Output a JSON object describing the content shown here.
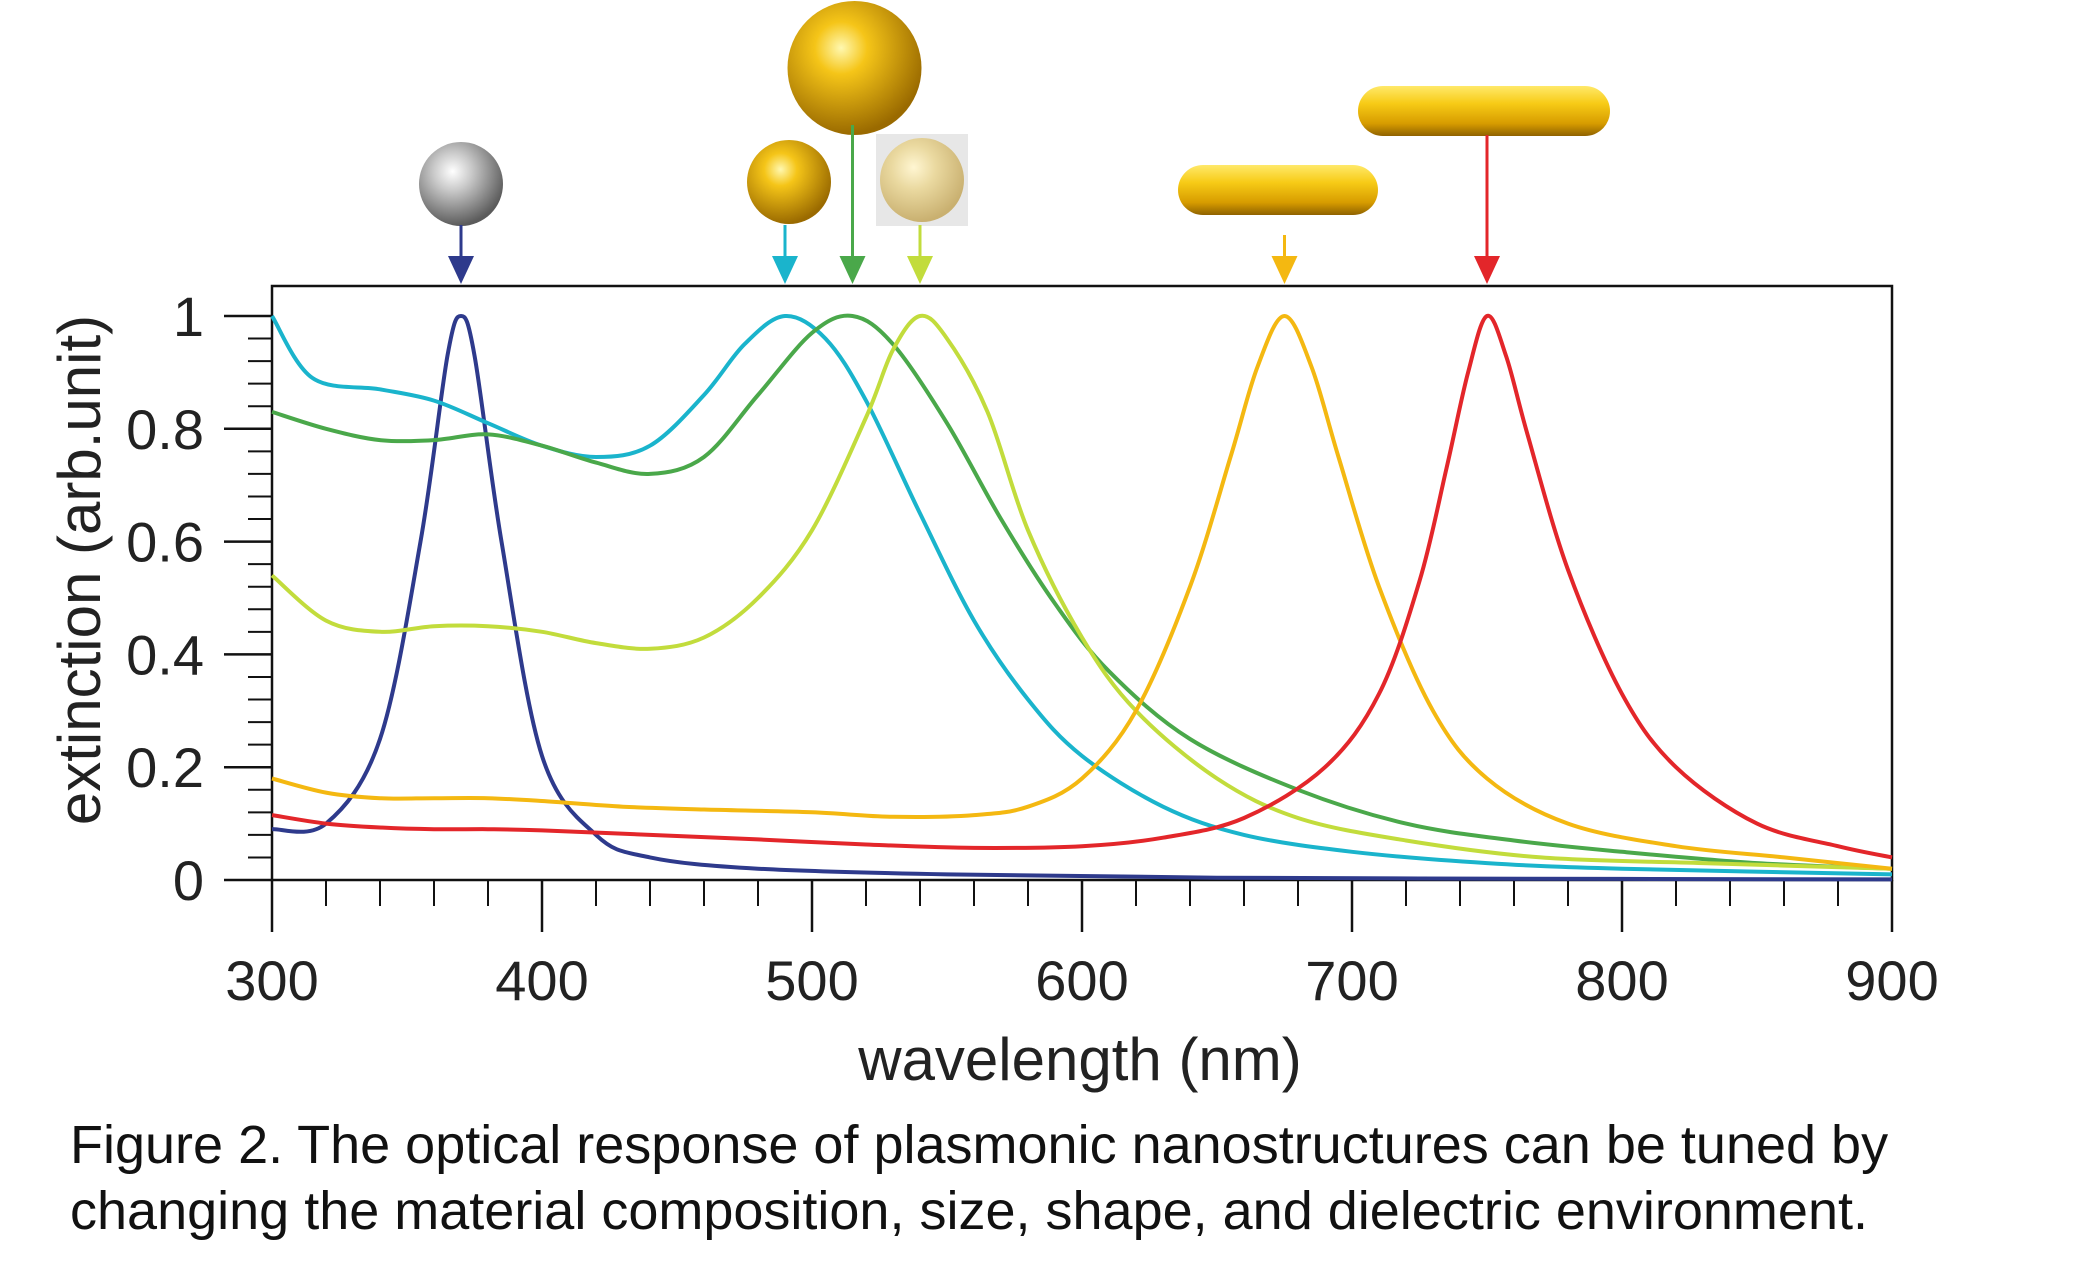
{
  "chart_data": {
    "type": "line",
    "xlabel": "wavelength (nm)",
    "ylabel": "extinction (arb.unit)",
    "xlim": [
      300,
      900
    ],
    "ylim": [
      0,
      1
    ],
    "xticks": [
      300,
      400,
      500,
      600,
      700,
      800,
      900
    ],
    "yticks": [
      0,
      0.2,
      0.4,
      0.6,
      0.8,
      1
    ],
    "ytick_labels": [
      "0",
      "0.2",
      "0.4",
      "0.6",
      "0.8",
      "1"
    ],
    "grid": false,
    "series": [
      {
        "color": "#2e3a8c",
        "peak": 370,
        "points": [
          [
            300,
            0.09
          ],
          [
            320,
            0.1
          ],
          [
            340,
            0.25
          ],
          [
            355,
            0.6
          ],
          [
            365,
            0.93
          ],
          [
            370,
            1.0
          ],
          [
            375,
            0.93
          ],
          [
            385,
            0.6
          ],
          [
            400,
            0.22
          ],
          [
            420,
            0.08
          ],
          [
            440,
            0.04
          ],
          [
            480,
            0.02
          ],
          [
            550,
            0.01
          ],
          [
            650,
            0.004
          ],
          [
            800,
            0.002
          ],
          [
            900,
            0.001
          ]
        ]
      },
      {
        "color": "#1ab4cc",
        "peak": 490,
        "points": [
          [
            300,
            1.0
          ],
          [
            315,
            0.89
          ],
          [
            340,
            0.87
          ],
          [
            360,
            0.85
          ],
          [
            380,
            0.81
          ],
          [
            400,
            0.77
          ],
          [
            420,
            0.75
          ],
          [
            440,
            0.77
          ],
          [
            460,
            0.86
          ],
          [
            475,
            0.95
          ],
          [
            490,
            1.0
          ],
          [
            505,
            0.96
          ],
          [
            520,
            0.85
          ],
          [
            540,
            0.65
          ],
          [
            560,
            0.46
          ],
          [
            580,
            0.32
          ],
          [
            600,
            0.22
          ],
          [
            630,
            0.13
          ],
          [
            660,
            0.08
          ],
          [
            700,
            0.05
          ],
          [
            750,
            0.03
          ],
          [
            800,
            0.02
          ],
          [
            900,
            0.01
          ]
        ]
      },
      {
        "color": "#4aa84a",
        "peak": 515,
        "points": [
          [
            300,
            0.83
          ],
          [
            320,
            0.8
          ],
          [
            340,
            0.78
          ],
          [
            360,
            0.78
          ],
          [
            380,
            0.79
          ],
          [
            400,
            0.77
          ],
          [
            420,
            0.74
          ],
          [
            440,
            0.72
          ],
          [
            460,
            0.75
          ],
          [
            480,
            0.86
          ],
          [
            500,
            0.97
          ],
          [
            515,
            1.0
          ],
          [
            530,
            0.95
          ],
          [
            550,
            0.81
          ],
          [
            570,
            0.64
          ],
          [
            590,
            0.49
          ],
          [
            610,
            0.37
          ],
          [
            640,
            0.25
          ],
          [
            680,
            0.16
          ],
          [
            720,
            0.1
          ],
          [
            760,
            0.07
          ],
          [
            800,
            0.05
          ],
          [
            850,
            0.03
          ],
          [
            900,
            0.02
          ]
        ]
      },
      {
        "color": "#c2dc3c",
        "peak": 540,
        "points": [
          [
            300,
            0.54
          ],
          [
            320,
            0.46
          ],
          [
            340,
            0.44
          ],
          [
            360,
            0.45
          ],
          [
            380,
            0.45
          ],
          [
            400,
            0.44
          ],
          [
            420,
            0.42
          ],
          [
            440,
            0.41
          ],
          [
            460,
            0.43
          ],
          [
            480,
            0.5
          ],
          [
            500,
            0.62
          ],
          [
            520,
            0.82
          ],
          [
            530,
            0.94
          ],
          [
            540,
            1.0
          ],
          [
            550,
            0.96
          ],
          [
            565,
            0.83
          ],
          [
            580,
            0.62
          ],
          [
            600,
            0.43
          ],
          [
            620,
            0.3
          ],
          [
            650,
            0.18
          ],
          [
            680,
            0.11
          ],
          [
            720,
            0.07
          ],
          [
            770,
            0.04
          ],
          [
            830,
            0.03
          ],
          [
            900,
            0.02
          ]
        ]
      },
      {
        "color": "#f4b811",
        "peak": 675,
        "points": [
          [
            300,
            0.18
          ],
          [
            320,
            0.155
          ],
          [
            340,
            0.145
          ],
          [
            360,
            0.145
          ],
          [
            380,
            0.145
          ],
          [
            400,
            0.14
          ],
          [
            430,
            0.13
          ],
          [
            460,
            0.125
          ],
          [
            500,
            0.12
          ],
          [
            530,
            0.112
          ],
          [
            560,
            0.115
          ],
          [
            580,
            0.13
          ],
          [
            600,
            0.18
          ],
          [
            620,
            0.3
          ],
          [
            640,
            0.52
          ],
          [
            655,
            0.75
          ],
          [
            665,
            0.91
          ],
          [
            675,
            1.0
          ],
          [
            685,
            0.91
          ],
          [
            695,
            0.75
          ],
          [
            710,
            0.52
          ],
          [
            730,
            0.3
          ],
          [
            750,
            0.18
          ],
          [
            780,
            0.1
          ],
          [
            820,
            0.06
          ],
          [
            860,
            0.04
          ],
          [
            900,
            0.02
          ]
        ]
      },
      {
        "color": "#e3262a",
        "peak": 750,
        "points": [
          [
            300,
            0.115
          ],
          [
            320,
            0.1
          ],
          [
            340,
            0.093
          ],
          [
            360,
            0.09
          ],
          [
            380,
            0.09
          ],
          [
            400,
            0.088
          ],
          [
            440,
            0.08
          ],
          [
            480,
            0.072
          ],
          [
            520,
            0.063
          ],
          [
            560,
            0.057
          ],
          [
            600,
            0.06
          ],
          [
            630,
            0.075
          ],
          [
            660,
            0.11
          ],
          [
            690,
            0.2
          ],
          [
            710,
            0.33
          ],
          [
            725,
            0.53
          ],
          [
            735,
            0.73
          ],
          [
            743,
            0.9
          ],
          [
            750,
            1.0
          ],
          [
            757,
            0.93
          ],
          [
            765,
            0.79
          ],
          [
            780,
            0.55
          ],
          [
            800,
            0.33
          ],
          [
            820,
            0.2
          ],
          [
            850,
            0.1
          ],
          [
            880,
            0.06
          ],
          [
            900,
            0.04
          ]
        ]
      }
    ]
  },
  "caption": {
    "line1": "Figure 2. The optical response of plasmonic nanostructures can be tuned by",
    "line2": "changing the material composition, size, shape, and dielectric environment."
  },
  "nanoparticles": [
    {
      "icon": "silver-sphere-icon",
      "marker_x": 370,
      "color": "#2e3a8c"
    },
    {
      "icon": "small-gold-sphere-icon",
      "marker_x": 490,
      "color": "#1ab4cc"
    },
    {
      "icon": "large-gold-sphere-icon",
      "marker_x": 515,
      "color": "#4aa84a"
    },
    {
      "icon": "pale-gold-sphere-in-medium-icon",
      "marker_x": 540,
      "color": "#c2dc3c"
    },
    {
      "icon": "short-gold-nanorod-icon",
      "marker_x": 675,
      "color": "#f4b811"
    },
    {
      "icon": "long-gold-nanorod-icon",
      "marker_x": 750,
      "color": "#e3262a"
    }
  ]
}
